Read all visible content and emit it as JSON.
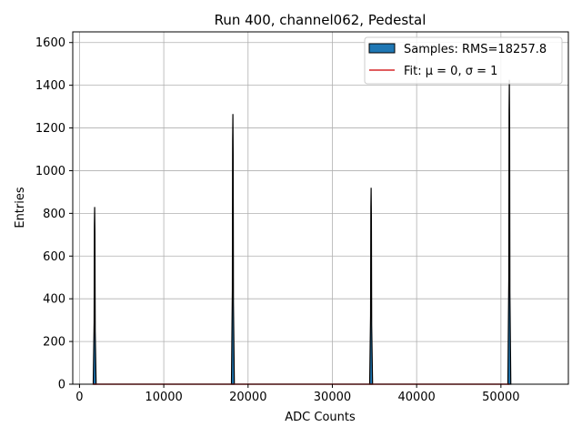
{
  "chart_data": {
    "type": "histogram",
    "title": "Run 400, channel062, Pedestal",
    "xlabel": "ADC Counts",
    "ylabel": "Entries",
    "xlim": [
      -800,
      58000
    ],
    "ylim": [
      0,
      1650
    ],
    "xticks": [
      0,
      10000,
      20000,
      30000,
      40000,
      50000
    ],
    "yticks": [
      0,
      200,
      400,
      600,
      800,
      1000,
      1200,
      1400,
      1600
    ],
    "grid": true,
    "legend_position": "top-right",
    "series": [
      {
        "name": "Samples: RMS=18257.8",
        "kind": "histogram",
        "color": "#1f77b4",
        "edgecolor": "#000000",
        "peaks": [
          {
            "center": 1800,
            "height": 830
          },
          {
            "center": 18200,
            "height": 1265
          },
          {
            "center": 34600,
            "height": 920
          },
          {
            "center": 51000,
            "height": 1425
          }
        ]
      },
      {
        "name": "Fit: μ = 0, σ = 1",
        "kind": "line",
        "color": "#d62728",
        "x": [
          1600,
          51000
        ],
        "y": [
          0,
          0
        ]
      }
    ]
  }
}
